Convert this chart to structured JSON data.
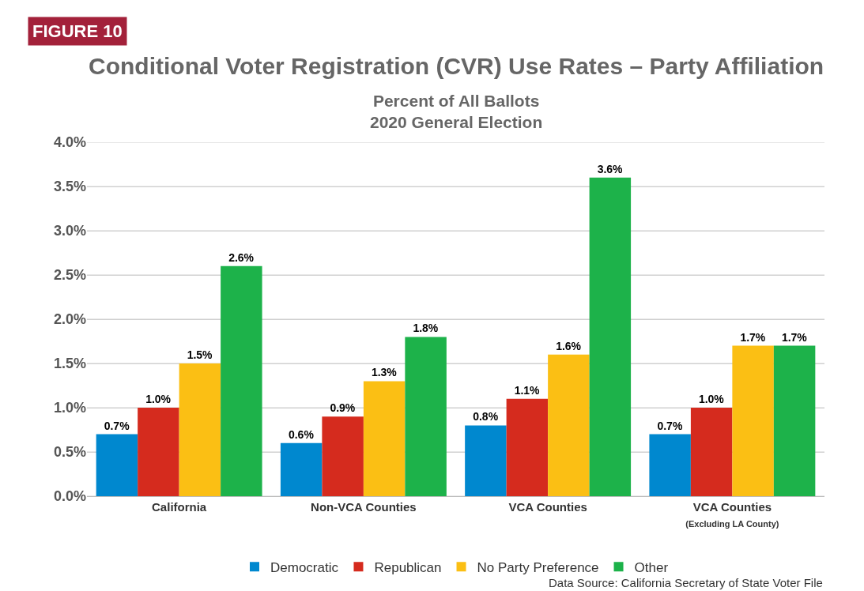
{
  "chart_data": {
    "type": "bar",
    "title": "Conditional Voter Registration (CVR) Use Rates – Party Affiliation",
    "subtitle": "Percent of All Ballots\n2020 General Election",
    "categories": [
      "California",
      "Non-VCA Counties",
      "VCA Counties",
      "VCA Counties\n(Excluding LA County)"
    ],
    "series": [
      {
        "name": "Democratic",
        "color": "#0088cf",
        "values": [
          0.7,
          0.6,
          0.8,
          0.7
        ]
      },
      {
        "name": "Republican",
        "color": "#d52b1e",
        "values": [
          1.0,
          0.9,
          1.1,
          1.0
        ]
      },
      {
        "name": "No Party Preference",
        "color": "#fbbf14",
        "values": [
          1.5,
          1.3,
          1.6,
          1.7
        ]
      },
      {
        "name": "Other",
        "color": "#1db24a",
        "values": [
          2.6,
          1.8,
          3.6,
          1.7
        ]
      }
    ],
    "value_labels": [
      [
        "0.7%",
        "0.6%",
        "0.8%",
        "0.7%"
      ],
      [
        "1.0%",
        "0.9%",
        "1.1%",
        "1.0%"
      ],
      [
        "1.5%",
        "1.3%",
        "1.6%",
        "1.7%"
      ],
      [
        "2.6%",
        "1.8%",
        "3.6%",
        "1.7%"
      ]
    ],
    "ylim": [
      0,
      4
    ],
    "yticks": [
      {
        "value": 0,
        "label": "0.0%"
      },
      {
        "value": 0.5,
        "label": "0.5%"
      },
      {
        "value": 1,
        "label": "1.0%"
      },
      {
        "value": 1.5,
        "label": "1.5%"
      },
      {
        "value": 2,
        "label": "2.0%"
      },
      {
        "value": 2.5,
        "label": "2.5%"
      },
      {
        "value": 3,
        "label": "3.0%"
      },
      {
        "value": 3.5,
        "label": "3.5%"
      },
      {
        "value": 4,
        "label": "4.0%"
      }
    ],
    "grid": "y",
    "legend": "bottom",
    "annotations": [
      "FIGURE 10",
      "Data Source: California Secretary of State Voter File"
    ]
  }
}
